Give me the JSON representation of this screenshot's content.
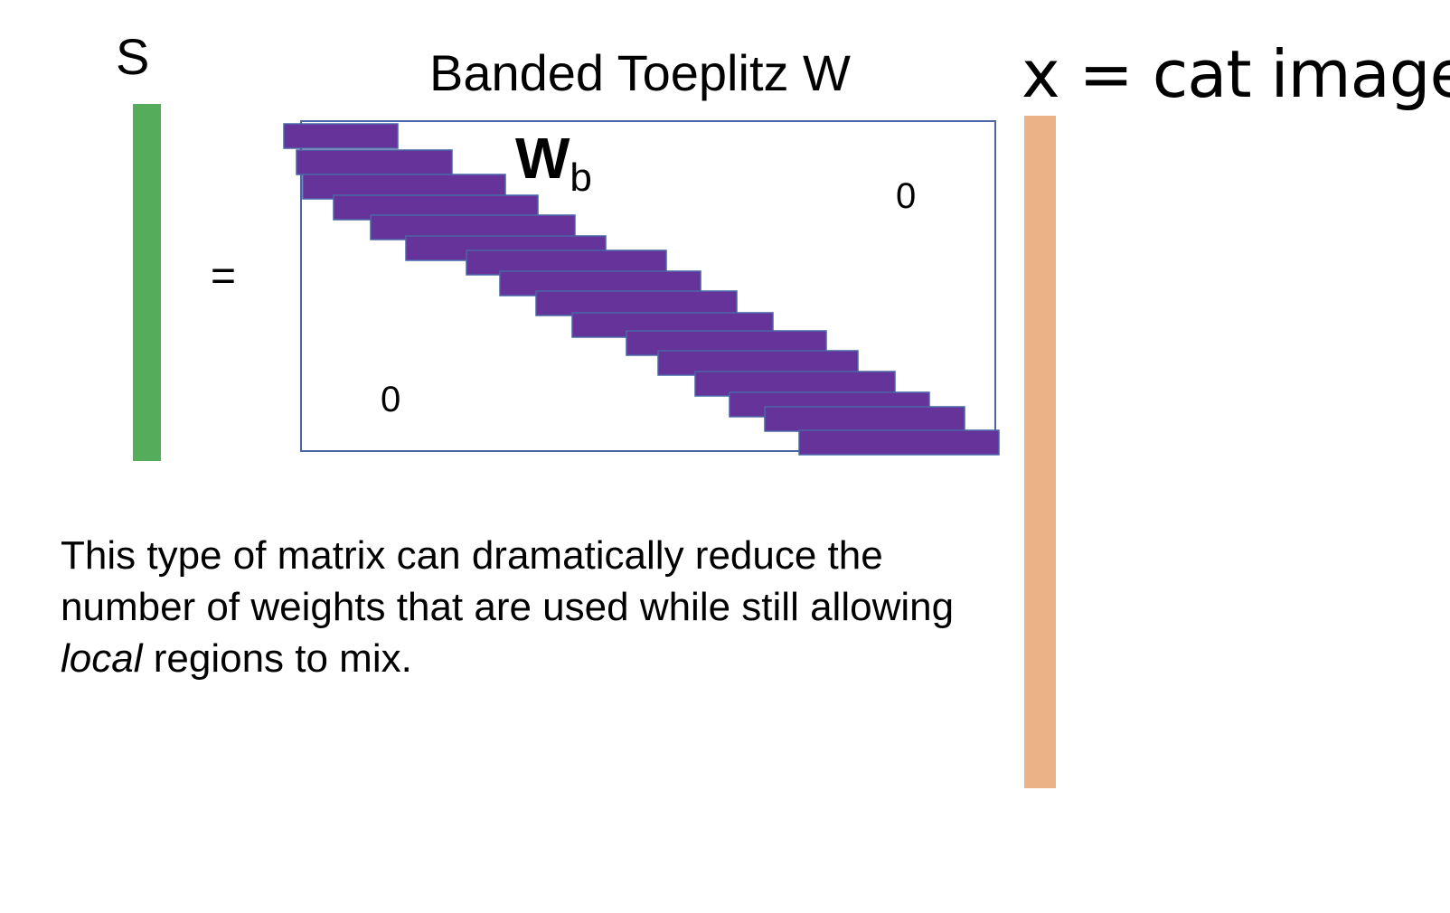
{
  "labels": {
    "s": "S",
    "equals": "=",
    "title": "Banded Toeplitz W",
    "wb_main": "W",
    "wb_sub": "b",
    "zero_upper": "0",
    "zero_lower": "0",
    "x_label": "x = cat image"
  },
  "caption": {
    "part1": "This type of matrix can dramatically reduce the number of weights that are used while still allowing ",
    "emphasis": "local",
    "part2": " regions to mix."
  },
  "colors": {
    "s_vector": "#55ad5c",
    "x_vector": "#e9b287",
    "band": "#66339a",
    "matrix_border": "#4a64a8"
  },
  "band_row_count": 17
}
